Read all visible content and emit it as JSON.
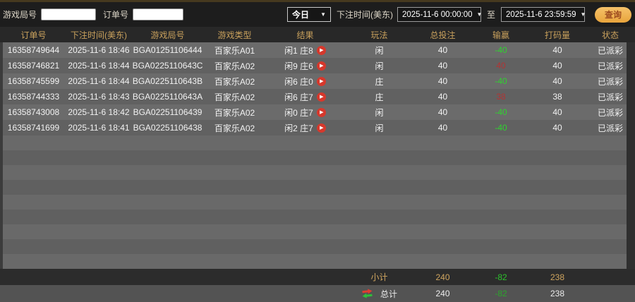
{
  "toolbar": {
    "game_round_label": "游戏局号",
    "game_round_value": "",
    "order_no_label": "订单号",
    "order_no_value": "",
    "period_selected": "今日",
    "bet_time_label": "下注时间(美东)",
    "date_from": "2025-11-6 00:00:00",
    "to_label": "至",
    "date_to": "2025-11-6 23:59:59",
    "query_button_label": "查询"
  },
  "table": {
    "headers": [
      "订单号",
      "下注时间(美东)",
      "游戏局号",
      "游戏类型",
      "结果",
      "玩法",
      "总投注",
      "输赢",
      "打码量",
      "状态"
    ],
    "rows": [
      {
        "order_no": "16358749644",
        "bet_time": "2025-11-6 18:46",
        "round_no": "BGA01251106444",
        "game_type": "百家乐A01",
        "result": "闲1 庄8",
        "play": "闲",
        "total_bet": "40",
        "win_loss": "-40",
        "turnover": "40",
        "status": "已派彩"
      },
      {
        "order_no": "16358746821",
        "bet_time": "2025-11-6 18:44",
        "round_no": "BGA0225110643C",
        "game_type": "百家乐A02",
        "result": "闲9 庄6",
        "play": "闲",
        "total_bet": "40",
        "win_loss": "40",
        "turnover": "40",
        "status": "已派彩"
      },
      {
        "order_no": "16358745599",
        "bet_time": "2025-11-6 18:44",
        "round_no": "BGA0225110643B",
        "game_type": "百家乐A02",
        "result": "闲6 庄0",
        "play": "庄",
        "total_bet": "40",
        "win_loss": "-40",
        "turnover": "40",
        "status": "已派彩"
      },
      {
        "order_no": "16358744333",
        "bet_time": "2025-11-6 18:43",
        "round_no": "BGA0225110643A",
        "game_type": "百家乐A02",
        "result": "闲6 庄7",
        "play": "庄",
        "total_bet": "40",
        "win_loss": "38",
        "turnover": "38",
        "status": "已派彩"
      },
      {
        "order_no": "16358743008",
        "bet_time": "2025-11-6 18:42",
        "round_no": "BGA02251106439",
        "game_type": "百家乐A02",
        "result": "闲0 庄7",
        "play": "闲",
        "total_bet": "40",
        "win_loss": "-40",
        "turnover": "40",
        "status": "已派彩"
      },
      {
        "order_no": "16358741699",
        "bet_time": "2025-11-6 18:41",
        "round_no": "BGA02251106438",
        "game_type": "百家乐A02",
        "result": "闲2 庄7",
        "play": "闲",
        "total_bet": "40",
        "win_loss": "-40",
        "turnover": "40",
        "status": "已派彩"
      }
    ]
  },
  "summary": {
    "subtotal": {
      "label": "小计",
      "total_bet": "240",
      "win_loss": "-82",
      "turnover": "238"
    },
    "total": {
      "label": "总计",
      "total_bet": "240",
      "win_loss": "-82",
      "turnover": "238"
    }
  },
  "colors": {
    "accent_gold": "#c8a05c",
    "loss_green": "#2fd32f",
    "win_red": "#b23434",
    "button_gold": "#e8a43c",
    "row_light": "#6b6b6b",
    "row_dark": "#616161",
    "play_icon_red": "#d6382c"
  }
}
